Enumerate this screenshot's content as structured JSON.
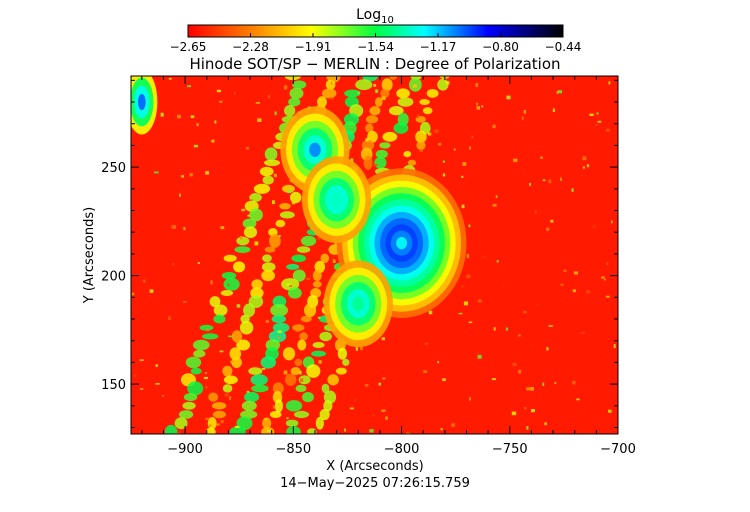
{
  "chart_data": {
    "type": "heatmap",
    "title": "Hinode SOT/SP − MERLIN : Degree of Polarization",
    "xlabel": "X (Arcseconds)",
    "ylabel": "Y (Arcseconds)",
    "timestamp": "14−May−2025 07:26:15.759",
    "colorbar": {
      "label_base": "Log",
      "label_sub": "10",
      "range": [
        -2.65,
        -0.44
      ],
      "tick_labels": [
        "−2.65",
        "−2.28",
        "−1.91",
        "−1.54",
        "−1.17",
        "−0.80",
        "−0.44"
      ],
      "colors": [
        "#ff0000",
        "#ff8800",
        "#ffff00",
        "#00ff44",
        "#00ffff",
        "#0000ff",
        "#000000"
      ]
    },
    "x_axis": {
      "range": [
        -925,
        -700
      ],
      "ticks": [
        -900,
        -850,
        -800,
        -750,
        -700
      ],
      "tick_labels": [
        "−900",
        "−850",
        "−800",
        "−750",
        "−700"
      ]
    },
    "y_axis": {
      "range": [
        127,
        292
      ],
      "ticks": [
        150,
        200,
        250
      ],
      "tick_labels": [
        "150",
        "200",
        "250"
      ]
    },
    "features": [
      {
        "kind": "sunspot",
        "x": -800,
        "y": 215,
        "peak_log10": -0.85
      },
      {
        "kind": "plage",
        "x": -840,
        "y": 258,
        "peak_log10": -1.0
      },
      {
        "kind": "plage",
        "x": -830,
        "y": 235,
        "peak_log10": -1.3
      },
      {
        "kind": "plage",
        "x": -820,
        "y": 187,
        "peak_log10": -1.4
      },
      {
        "kind": "limb",
        "x": -920,
        "y": 280,
        "peak_log10": -0.9
      }
    ],
    "background_log10": -2.65
  }
}
